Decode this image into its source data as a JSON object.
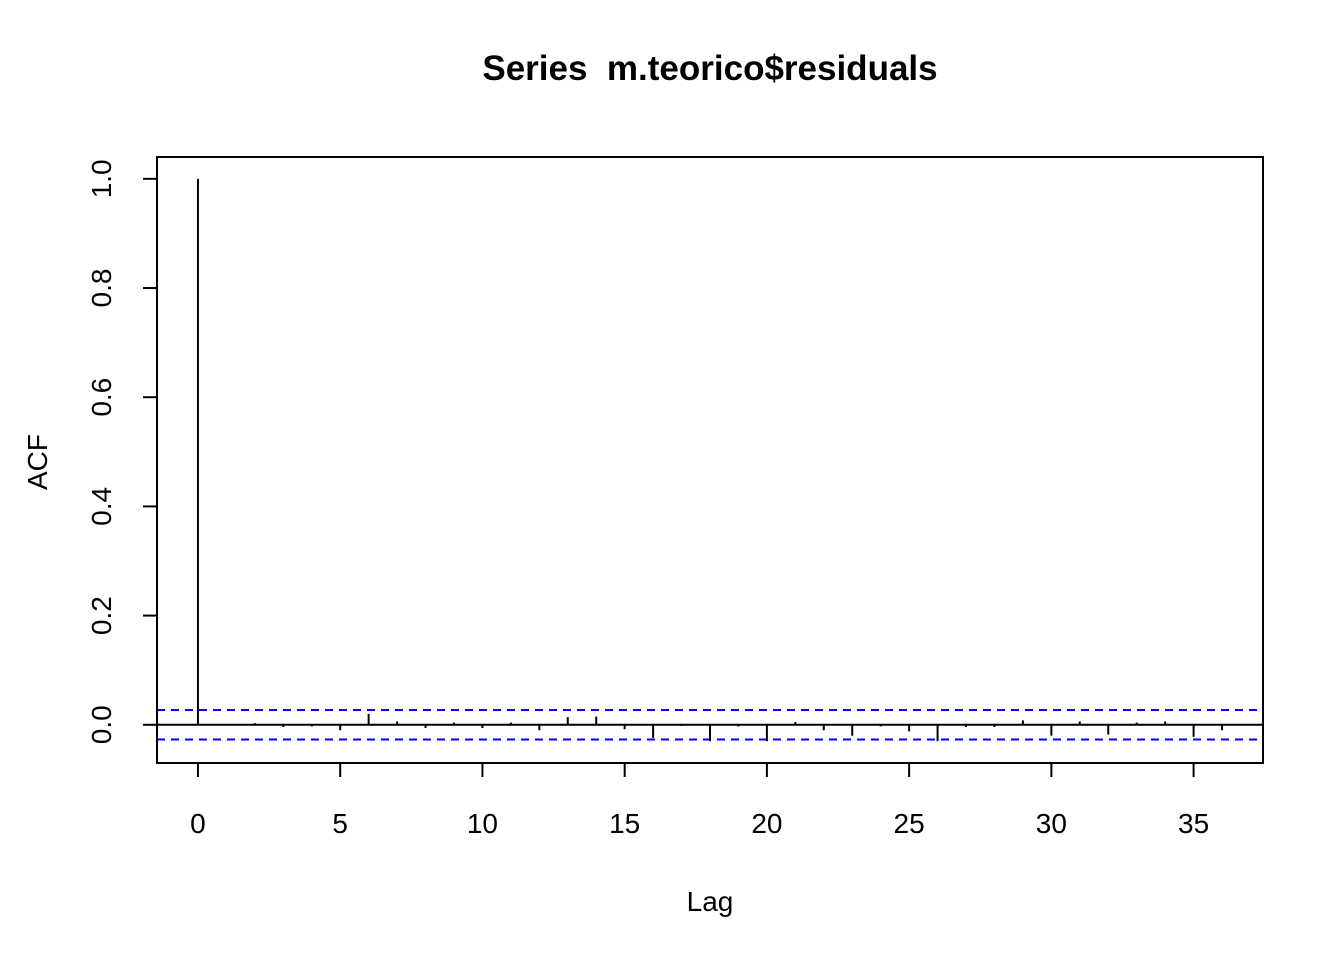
{
  "chart_data": {
    "type": "bar",
    "title": "Series  m.teorico$residuals",
    "xlabel": "Lag",
    "ylabel": "ACF",
    "xlim": [
      -1.44,
      37.44
    ],
    "ylim": [
      -0.07,
      1.04
    ],
    "x_ticks": [
      "0",
      "5",
      "10",
      "15",
      "20",
      "25",
      "30",
      "35"
    ],
    "y_ticks": [
      "0.0",
      "0.2",
      "0.4",
      "0.6",
      "0.8",
      "1.0"
    ],
    "grid": false,
    "confidence_bounds": [
      0.027,
      -0.027
    ],
    "colors": {
      "bars": "#000000",
      "bounds": "#0000ff",
      "frame": "#000000"
    },
    "lags": [
      0,
      1,
      2,
      3,
      4,
      5,
      6,
      7,
      8,
      9,
      10,
      11,
      12,
      13,
      14,
      15,
      16,
      17,
      18,
      19,
      20,
      21,
      22,
      23,
      24,
      25,
      26,
      27,
      28,
      29,
      30,
      31,
      32,
      33,
      34,
      35,
      36
    ],
    "acf": [
      1.0,
      0.0,
      0.003,
      -0.004,
      -0.003,
      -0.01,
      0.02,
      0.006,
      -0.006,
      0.004,
      -0.006,
      0.004,
      -0.01,
      0.014,
      0.015,
      -0.008,
      -0.024,
      -0.002,
      -0.03,
      -0.003,
      -0.03,
      0.005,
      -0.01,
      -0.02,
      -0.003,
      -0.012,
      -0.03,
      -0.004,
      -0.004,
      0.008,
      -0.02,
      0.006,
      -0.018,
      0.004,
      0.006,
      -0.022,
      -0.01
    ]
  }
}
